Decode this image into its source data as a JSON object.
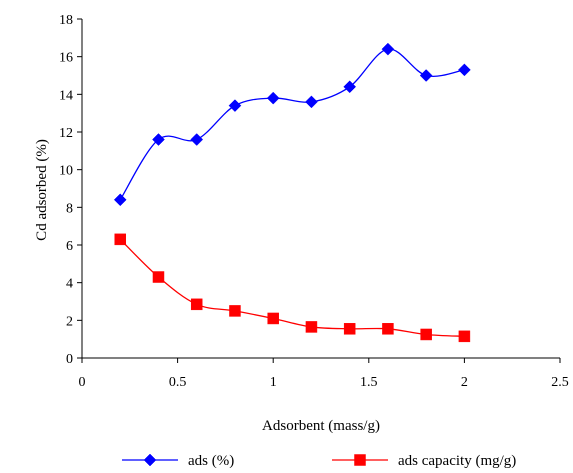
{
  "chart_data": {
    "type": "line",
    "title": "",
    "xlabel": "Adsorbent (mass/g)",
    "ylabel": "Cd adsorbed (%)",
    "xlim": [
      0,
      2.5
    ],
    "ylim": [
      0,
      18
    ],
    "x_ticks": [
      "0",
      "0.5",
      "1",
      "1.5",
      "2",
      "2.5"
    ],
    "y_ticks": [
      "0",
      "2",
      "4",
      "6",
      "8",
      "10",
      "12",
      "14",
      "16",
      "18"
    ],
    "grid": false,
    "legend_position": "bottom",
    "series": [
      {
        "name": "ads (%)",
        "color": "#0000ff",
        "marker": "diamond",
        "x": [
          0.2,
          0.4,
          0.6,
          0.8,
          1.0,
          1.2,
          1.4,
          1.6,
          1.8,
          2.0
        ],
        "y": [
          8.4,
          11.6,
          11.6,
          13.4,
          13.8,
          13.6,
          14.4,
          16.4,
          15.0,
          15.3
        ]
      },
      {
        "name": "ads capacity (mg/g)",
        "color": "#ff0000",
        "marker": "square",
        "x": [
          0.2,
          0.4,
          0.6,
          0.8,
          1.0,
          1.2,
          1.4,
          1.6,
          1.8,
          2.0
        ],
        "y": [
          6.3,
          4.3,
          2.85,
          2.5,
          2.1,
          1.65,
          1.55,
          1.55,
          1.25,
          1.15
        ]
      }
    ]
  }
}
